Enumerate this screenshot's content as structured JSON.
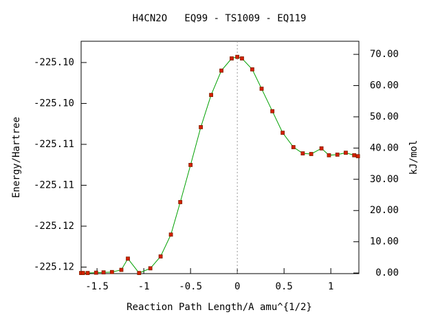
{
  "chart_data": {
    "type": "line",
    "title": "H4CN2O   EQ99 - TS1009 - EQ119",
    "xlabel": "Reaction Path Length/A amu^{1/2}",
    "ylabel": "Energy/Hartree",
    "y2label": "kJ/mol",
    "xlim": [
      -1.67,
      1.3
    ],
    "xticks": [
      -1.5,
      -1,
      -0.5,
      0,
      0.5,
      1
    ],
    "ylim": [
      -225.1258,
      -225.0974
    ],
    "yticks": [
      {
        "value": -225.125,
        "label": "-225.12"
      },
      {
        "value": -225.12,
        "label": "-225.12"
      },
      {
        "value": -225.115,
        "label": "-225.11"
      },
      {
        "value": -225.11,
        "label": "-225.11"
      },
      {
        "value": -225.105,
        "label": "-225.10"
      },
      {
        "value": -225.1,
        "label": "-225.10"
      }
    ],
    "y2lim": [
      -0.2,
      74.2
    ],
    "y2ticks": [
      {
        "value": 0,
        "label": "0.00"
      },
      {
        "value": 10,
        "label": "10.00"
      },
      {
        "value": 20,
        "label": "20.00"
      },
      {
        "value": 30,
        "label": "30.00"
      },
      {
        "value": 40,
        "label": "40.00"
      },
      {
        "value": 50,
        "label": "50.00"
      },
      {
        "value": 60,
        "label": "60.00"
      },
      {
        "value": 70,
        "label": "70.00"
      }
    ],
    "series": [
      {
        "color": "#00a000",
        "marker_color": "#d42000",
        "axis": "y2",
        "x": [
          -1.67,
          -1.65,
          -1.6,
          -1.51,
          -1.43,
          -1.34,
          -1.24,
          -1.17,
          -1.05,
          -0.93,
          -0.82,
          -0.71,
          -0.61,
          -0.5,
          -0.39,
          -0.28,
          -0.17,
          -0.06,
          0,
          0.05,
          0.16,
          0.26,
          0.375,
          0.485,
          0.6,
          0.7,
          0.79,
          0.9,
          0.98,
          1.07,
          1.16,
          1.25,
          1.29
        ],
        "values": [
          0,
          0,
          0,
          0.1,
          0.2,
          0.3,
          1.0,
          4.6,
          0,
          1.5,
          5.3,
          12.3,
          22.7,
          34.6,
          46.7,
          57.0,
          64.8,
          68.7,
          69.2,
          68.7,
          65.2,
          59.0,
          51.8,
          44.9,
          40.3,
          38.3,
          38.1,
          39.9,
          37.7,
          37.9,
          38.5,
          37.7,
          37.4
        ]
      }
    ]
  }
}
